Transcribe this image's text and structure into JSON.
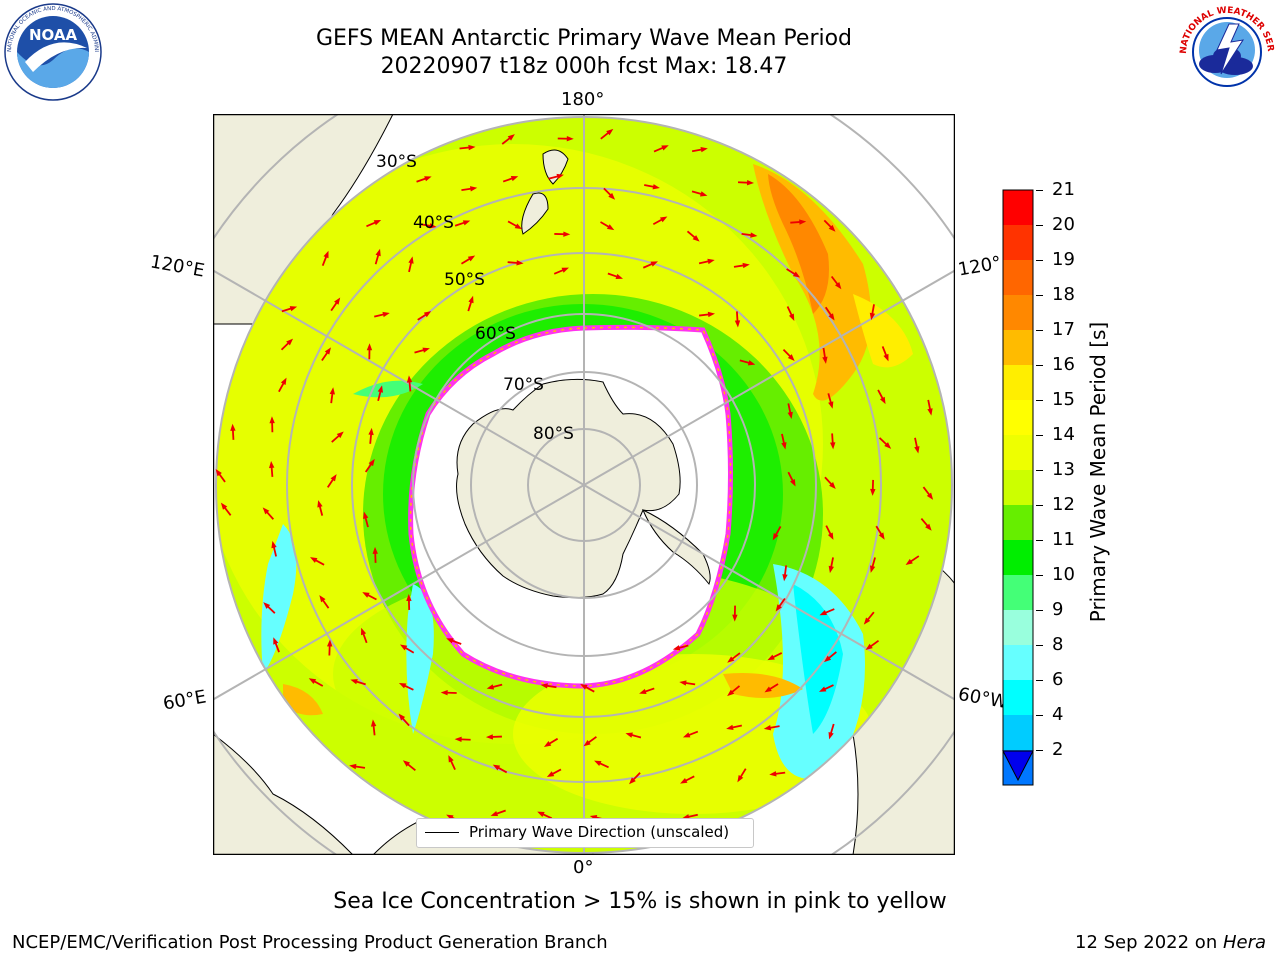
{
  "title": {
    "line1": "GEFS MEAN Antarctic Primary Wave Mean Period",
    "line2": "20220907 t18z 000h fcst   Max: 18.47"
  },
  "logos": {
    "left": {
      "name": "NOAA",
      "ring_text": "NATIONAL OCEANIC AND ATMOSPHERIC ADMINISTRATION · U.S. DEPARTMENT OF COMMERCE"
    },
    "right": {
      "name": "National Weather Service",
      "ring_text": "NATIONAL WEATHER SERVICE"
    }
  },
  "map": {
    "projection": "south polar stereographic",
    "longitude_labels": {
      "top": "180°",
      "bottom": "0°",
      "left_upper": "120°E",
      "left_lower": "60°E",
      "right_upper": "120°",
      "right_lower": "60°W"
    },
    "latitude_labels": [
      "30°S",
      "40°S",
      "50°S",
      "60°S",
      "70°S",
      "80°S"
    ],
    "legend": "Primary Wave Direction (unscaled)",
    "colors": {
      "land": "#efeedc",
      "ice_edge": "#ff33ee",
      "arrow": "#ee0000",
      "grid": "#b4b4b4"
    }
  },
  "colorbar": {
    "label": "Primary Wave Mean Period [s]",
    "ticks": [
      "21",
      "20",
      "19",
      "18",
      "17",
      "16",
      "15",
      "14",
      "13",
      "12",
      "11",
      "10",
      "9",
      "8",
      "6",
      "4",
      "2"
    ],
    "bands": [
      "#ff0000",
      "#ff3300",
      "#ff6600",
      "#ff8800",
      "#ffbb00",
      "#ffee00",
      "#ffff00",
      "#eeff00",
      "#ccff00",
      "#66ee00",
      "#00ee00",
      "#44ff77",
      "#99ffdd",
      "#66ffff",
      "#00ffff",
      "#00ccff",
      "#0077ff"
    ],
    "extend_below_color": "#0000ee"
  },
  "footer": {
    "note": "Sea Ice Concentration > 15% is shown in pink to yellow",
    "left": "NCEP/EMC/Verification Post Processing Product Generation Branch",
    "right_date": "12 Sep 2022 on ",
    "right_machine": "Hera"
  }
}
